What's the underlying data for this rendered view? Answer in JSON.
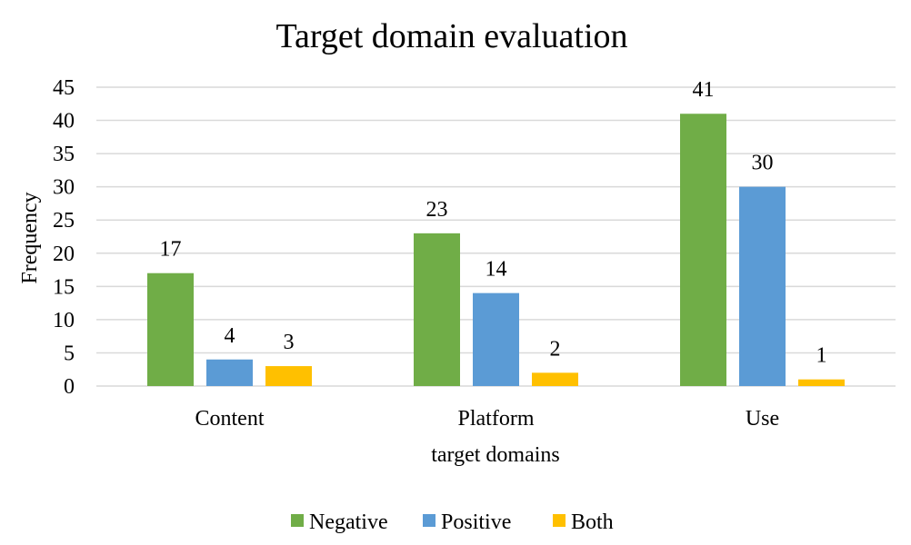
{
  "chart_data": {
    "type": "bar",
    "title": "Target domain evaluation",
    "xlabel": "target domains",
    "ylabel": "Frequency",
    "categories": [
      "Content",
      "Platform",
      "Use"
    ],
    "series": [
      {
        "name": "Negative",
        "values": [
          17,
          23,
          41
        ],
        "color": "#70ad47"
      },
      {
        "name": "Positive",
        "values": [
          4,
          14,
          30
        ],
        "color": "#5b9bd5"
      },
      {
        "name": "Both",
        "values": [
          3,
          2,
          1
        ],
        "color": "#ffc000"
      }
    ],
    "ylim": [
      0,
      45
    ],
    "yticks": [
      0,
      5,
      10,
      15,
      20,
      25,
      30,
      35,
      40,
      45
    ],
    "grid": true,
    "legend_position": "bottom"
  }
}
